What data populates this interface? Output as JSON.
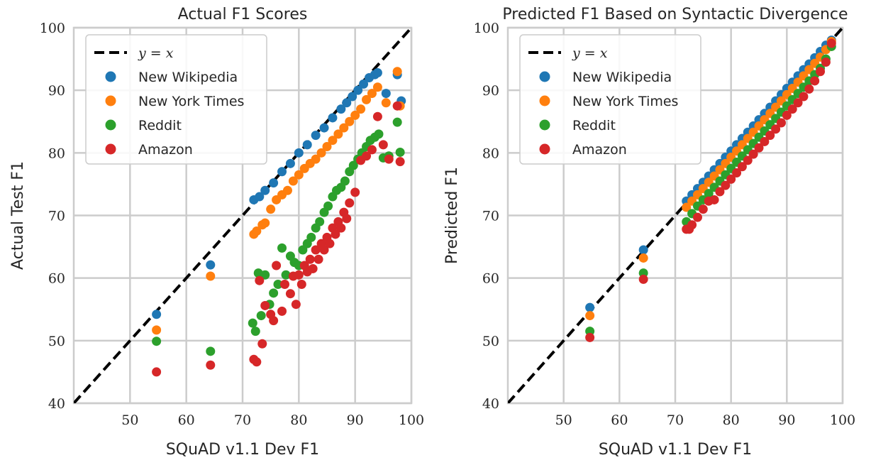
{
  "chart_data": [
    {
      "type": "scatter",
      "title": "Actual F1 Scores",
      "xlabel": "SQuAD v1.1 Dev F1",
      "ylabel": "Actual Test F1",
      "xlim": [
        40,
        100
      ],
      "ylim": [
        40,
        100
      ],
      "xticks": [
        50,
        60,
        70,
        80,
        90,
        100
      ],
      "yticks": [
        40,
        50,
        60,
        70,
        80,
        90,
        100
      ],
      "grid": true,
      "legend_position": "top-left",
      "reference_line": {
        "label": "y = x",
        "style": "dashed",
        "color": "#000000"
      },
      "series": [
        {
          "name": "New Wikipedia",
          "color": "#1f77b4",
          "x": [
            54.7,
            64.3,
            72.0,
            73.0,
            74.0,
            75.5,
            77.0,
            78.5,
            80.0,
            81.5,
            83.0,
            84.5,
            86.0,
            87.5,
            88.5,
            89.5,
            90.5,
            91.5,
            92.5,
            93.5,
            94.0,
            95.5,
            97.5,
            98.2
          ],
          "y": [
            54.2,
            62.1,
            72.5,
            73.0,
            74.0,
            75.2,
            77.0,
            78.3,
            80.0,
            81.3,
            82.8,
            84.0,
            85.6,
            87.0,
            88.0,
            89.0,
            90.0,
            91.0,
            92.0,
            92.5,
            92.8,
            89.5,
            92.5,
            88.3
          ]
        },
        {
          "name": "New York Times",
          "color": "#ff7f0e",
          "x": [
            54.7,
            64.3,
            72.0,
            72.5,
            73.5,
            74.0,
            75.0,
            76.0,
            77.0,
            78.0,
            79.0,
            80.0,
            81.0,
            82.0,
            83.0,
            84.0,
            85.0,
            86.0,
            87.0,
            88.0,
            89.0,
            90.0,
            91.0,
            92.0,
            93.0,
            94.0,
            95.5,
            97.5,
            98.0
          ],
          "y": [
            51.7,
            60.3,
            67.0,
            67.5,
            68.5,
            68.8,
            71.0,
            72.5,
            73.3,
            74.0,
            75.5,
            76.5,
            77.5,
            78.3,
            79.0,
            80.0,
            81.0,
            82.0,
            83.0,
            84.0,
            85.0,
            86.0,
            87.0,
            88.5,
            89.5,
            90.5,
            88.0,
            93.0,
            87.5
          ]
        },
        {
          "name": "Reddit",
          "color": "#2ca02c",
          "x": [
            54.7,
            64.3,
            71.8,
            72.3,
            72.8,
            73.3,
            74.0,
            74.8,
            75.5,
            76.3,
            77.0,
            77.7,
            78.5,
            79.2,
            80.0,
            80.7,
            81.5,
            82.2,
            83.0,
            83.7,
            84.5,
            85.2,
            86.0,
            86.7,
            87.5,
            88.2,
            89.0,
            89.7,
            90.5,
            91.2,
            92.0,
            92.7,
            93.5,
            94.2,
            95.0,
            96.0,
            97.5,
            98.0
          ],
          "y": [
            49.9,
            48.3,
            52.8,
            51.5,
            60.8,
            54.0,
            60.5,
            55.8,
            57.6,
            59.0,
            64.8,
            60.5,
            63.5,
            62.5,
            62.0,
            64.5,
            65.5,
            66.5,
            68.0,
            69.0,
            70.5,
            71.5,
            73.0,
            74.0,
            74.5,
            75.5,
            77.0,
            78.0,
            79.0,
            80.0,
            81.0,
            82.0,
            82.5,
            83.0,
            79.2,
            79.5,
            84.9,
            80.1
          ]
        },
        {
          "name": "Amazon",
          "color": "#d62728",
          "x": [
            54.7,
            64.3,
            72.0,
            72.5,
            73.0,
            73.5,
            74.0,
            75.0,
            75.5,
            76.0,
            77.0,
            77.5,
            78.5,
            79.0,
            79.5,
            80.0,
            80.5,
            81.0,
            81.5,
            82.0,
            82.5,
            83.0,
            83.5,
            84.0,
            84.5,
            85.0,
            85.5,
            86.0,
            86.5,
            87.0,
            87.5,
            88.0,
            88.5,
            89.0,
            90.0,
            91.0,
            92.0,
            93.0,
            94.0,
            95.0,
            96.0,
            97.5,
            98.0
          ],
          "y": [
            45.0,
            46.1,
            47.0,
            46.6,
            59.6,
            49.5,
            55.6,
            54.2,
            53.2,
            62.0,
            54.7,
            59.0,
            57.5,
            60.3,
            55.8,
            60.5,
            59.0,
            62.0,
            61.0,
            63.0,
            61.5,
            64.5,
            63.0,
            65.5,
            64.5,
            66.5,
            65.5,
            68.0,
            67.0,
            69.0,
            68.0,
            70.5,
            69.5,
            72.0,
            73.7,
            78.8,
            79.5,
            80.5,
            85.8,
            81.3,
            79.0,
            87.5,
            78.6
          ]
        }
      ]
    },
    {
      "type": "scatter",
      "title": "Predicted F1 Based on Syntactic Divergence",
      "xlabel": "SQuAD v1.1 Dev F1",
      "ylabel": "Predicted F1",
      "xlim": [
        40,
        100
      ],
      "ylim": [
        40,
        100
      ],
      "xticks": [
        50,
        60,
        70,
        80,
        90,
        100
      ],
      "yticks": [
        40,
        50,
        60,
        70,
        80,
        90,
        100
      ],
      "grid": true,
      "legend_position": "top-left",
      "reference_line": {
        "label": "y = x",
        "style": "dashed",
        "color": "#000000"
      },
      "series": [
        {
          "name": "New Wikipedia",
          "color": "#1f77b4",
          "x": [
            54.7,
            64.3,
            72.0,
            73.0,
            74.0,
            75.0,
            76.0,
            77.0,
            78.0,
            79.0,
            80.0,
            81.0,
            82.0,
            83.0,
            84.0,
            85.0,
            86.0,
            87.0,
            88.0,
            89.0,
            90.0,
            91.0,
            92.0,
            93.0,
            94.0,
            95.0,
            96.0,
            97.0,
            98.0
          ],
          "y": [
            55.3,
            64.5,
            72.3,
            73.3,
            74.3,
            75.3,
            76.3,
            77.3,
            78.3,
            79.3,
            80.3,
            81.3,
            82.3,
            83.3,
            84.3,
            85.3,
            86.3,
            87.3,
            88.3,
            89.3,
            90.3,
            91.3,
            92.3,
            93.3,
            94.2,
            95.2,
            96.2,
            97.2,
            98.0
          ]
        },
        {
          "name": "New York Times",
          "color": "#ff7f0e",
          "x": [
            54.7,
            64.3,
            72.0,
            73.0,
            74.0,
            75.0,
            76.0,
            77.0,
            78.0,
            79.0,
            80.0,
            81.0,
            82.0,
            83.0,
            84.0,
            85.0,
            86.0,
            87.0,
            88.0,
            89.0,
            90.0,
            91.0,
            92.0,
            93.0,
            94.0,
            95.0,
            96.0,
            97.0,
            98.0
          ],
          "y": [
            54.0,
            63.2,
            71.3,
            72.3,
            73.3,
            74.3,
            75.3,
            76.3,
            77.3,
            78.3,
            79.3,
            80.3,
            81.3,
            82.3,
            83.3,
            84.3,
            85.3,
            86.3,
            87.3,
            88.3,
            89.3,
            90.3,
            91.3,
            92.3,
            93.3,
            94.3,
            95.3,
            96.5,
            97.8
          ]
        },
        {
          "name": "Reddit",
          "color": "#2ca02c",
          "x": [
            54.7,
            64.3,
            72.0,
            73.0,
            74.0,
            75.0,
            76.0,
            77.0,
            78.0,
            79.0,
            80.0,
            81.0,
            82.0,
            83.0,
            84.0,
            85.0,
            86.0,
            87.0,
            88.0,
            89.0,
            90.0,
            91.0,
            92.0,
            93.0,
            94.0,
            95.0,
            96.0,
            97.0,
            98.0
          ],
          "y": [
            51.5,
            60.8,
            69.0,
            70.3,
            71.5,
            72.5,
            73.5,
            74.5,
            75.5,
            76.5,
            77.5,
            78.5,
            79.5,
            80.5,
            81.5,
            82.5,
            83.5,
            84.5,
            85.5,
            86.5,
            87.5,
            88.5,
            89.5,
            90.5,
            91.5,
            92.5,
            93.5,
            95.0,
            97.0
          ]
        },
        {
          "name": "Amazon",
          "color": "#d62728",
          "x": [
            54.7,
            64.3,
            72.0,
            72.5,
            73.0,
            74.0,
            75.0,
            76.0,
            77.0,
            78.0,
            79.0,
            80.0,
            81.0,
            82.0,
            83.0,
            84.0,
            85.0,
            86.0,
            87.0,
            88.0,
            89.0,
            90.0,
            91.0,
            92.0,
            93.0,
            94.0,
            95.0,
            96.0,
            97.0,
            98.0
          ],
          "y": [
            50.5,
            59.8,
            67.8,
            67.8,
            68.5,
            69.7,
            71.0,
            72.3,
            72.5,
            73.8,
            74.8,
            75.8,
            76.8,
            77.8,
            78.8,
            79.8,
            80.8,
            81.8,
            82.8,
            83.8,
            84.8,
            86.0,
            87.0,
            88.0,
            89.0,
            90.2,
            91.5,
            93.0,
            94.5,
            97.5
          ]
        }
      ]
    }
  ]
}
